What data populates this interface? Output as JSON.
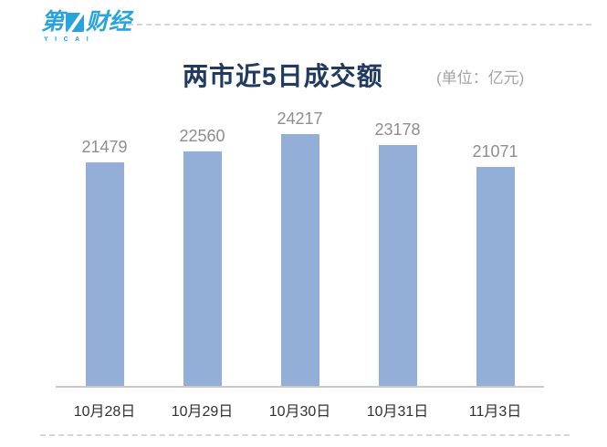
{
  "brand": {
    "logo_text_part1": "第",
    "logo_text_part2": "财经",
    "logo_subtext": "YICAI",
    "logo_color": "#29a3dc"
  },
  "header": {
    "title": "两市近5日成交额",
    "unit_label": "(单位：亿元)"
  },
  "chart_data": {
    "type": "bar",
    "title": "两市近5日成交额",
    "unit": "亿元",
    "categories": [
      "10月28日",
      "10月29日",
      "10月30日",
      "10月31日",
      "11月3日"
    ],
    "values": [
      21479,
      22560,
      24217,
      23178,
      21071
    ],
    "ylim": [
      0,
      24217
    ],
    "grid": false,
    "legend": false,
    "bar_color": "#93afd7"
  },
  "colors": {
    "title_text": "#203a60",
    "unit_text": "#a3a3a3",
    "value_label": "#8e8e8e",
    "axis_line": "#c9c9c9",
    "x_label": "#303030",
    "dashed_rule": "#d6d6d6"
  }
}
